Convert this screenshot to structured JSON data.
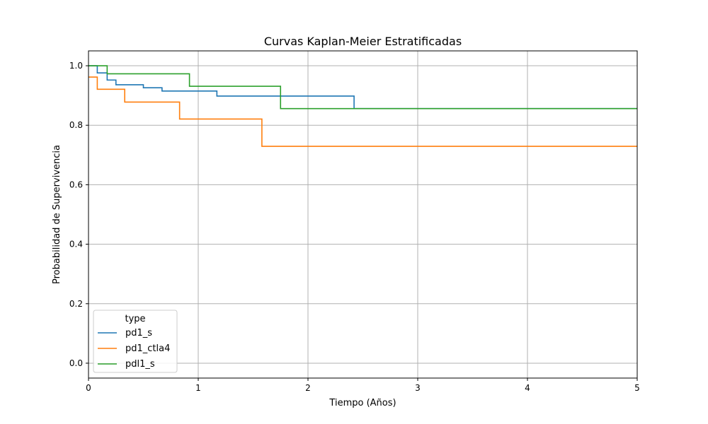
{
  "chart_data": {
    "type": "line",
    "step": "post",
    "title": "Curvas Kaplan-Meier Estratificadas",
    "xlabel": "Tiempo (Años)",
    "ylabel": "Probabilidad de Supervivencia",
    "xlim": [
      0,
      5
    ],
    "ylim": [
      -0.05,
      1.05
    ],
    "xticks": [
      0,
      1,
      2,
      3,
      4,
      5
    ],
    "xtick_labels": [
      "0",
      "1",
      "2",
      "3",
      "4",
      "5"
    ],
    "yticks": [
      0.0,
      0.2,
      0.4,
      0.6,
      0.8,
      1.0
    ],
    "ytick_labels": [
      "0.0",
      "0.2",
      "0.4",
      "0.6",
      "0.8",
      "1.0"
    ],
    "grid": true,
    "legend": {
      "title": "type",
      "location": "lower-left"
    },
    "series": [
      {
        "name": "pd1_s",
        "color": "#1f77b4",
        "times": [
          0,
          0.08,
          0.17,
          0.25,
          0.5,
          0.67,
          1.17,
          2.42,
          5.0
        ],
        "survival": [
          1.0,
          0.976,
          0.952,
          0.936,
          0.926,
          0.915,
          0.898,
          0.856,
          0.856
        ]
      },
      {
        "name": "pd1_ctla4",
        "color": "#ff7f0e",
        "times": [
          0,
          0.08,
          0.33,
          0.83,
          1.58,
          5.0
        ],
        "survival": [
          0.962,
          0.921,
          0.878,
          0.821,
          0.729,
          0.729
        ]
      },
      {
        "name": "pdl1_s",
        "color": "#2ca02c",
        "times": [
          0,
          0.17,
          0.92,
          1.75,
          5.0
        ],
        "survival": [
          1.0,
          0.973,
          0.931,
          0.856,
          0.856
        ]
      }
    ]
  }
}
